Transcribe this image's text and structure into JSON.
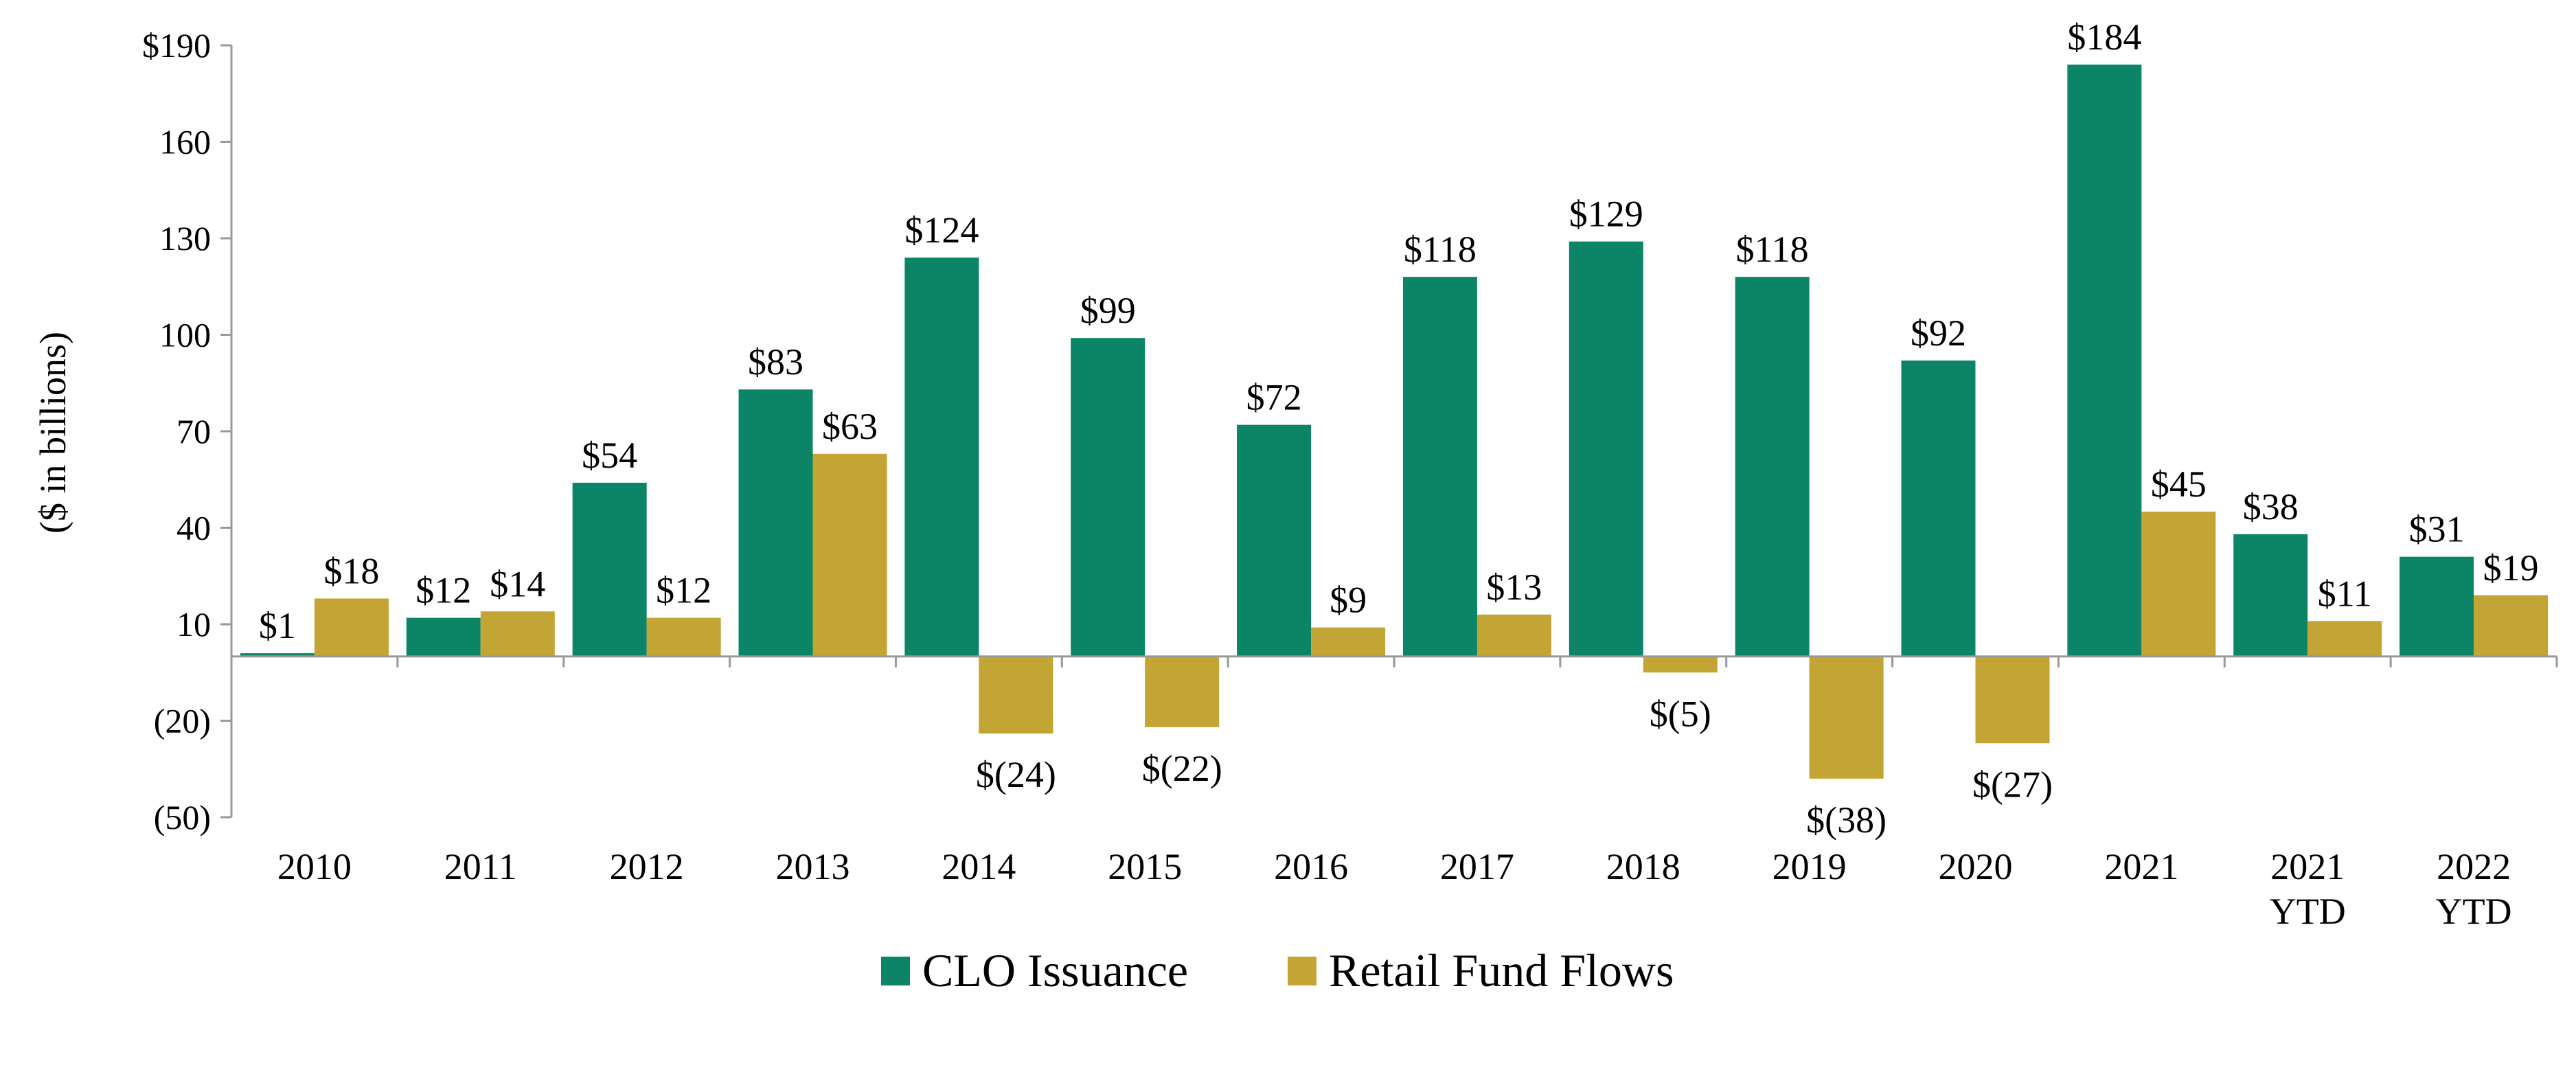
{
  "chart_data": {
    "type": "bar",
    "title": "",
    "ylabel": "($ in billions)",
    "xlabel": "",
    "ylim": [
      -50,
      190
    ],
    "yticks": [
      -50,
      -20,
      10,
      40,
      70,
      100,
      130,
      160,
      190
    ],
    "ytick_labels": [
      "(50)",
      "(20)",
      "10",
      "40",
      "70",
      "100",
      "130",
      "160",
      "$190"
    ],
    "categories": [
      [
        "2010"
      ],
      [
        "2011"
      ],
      [
        "2012"
      ],
      [
        "2013"
      ],
      [
        "2014"
      ],
      [
        "2015"
      ],
      [
        "2016"
      ],
      [
        "2017"
      ],
      [
        "2018"
      ],
      [
        "2019"
      ],
      [
        "2020"
      ],
      [
        "2021"
      ],
      [
        "2021",
        "YTD"
      ],
      [
        "2022",
        "YTD"
      ]
    ],
    "series": [
      {
        "name": "CLO Issuance",
        "color": "#0b8467",
        "values": [
          1,
          12,
          54,
          83,
          124,
          99,
          72,
          118,
          129,
          118,
          92,
          184,
          38,
          31
        ],
        "labels": [
          "$1",
          "$12",
          "$54",
          "$83",
          "$124",
          "$99",
          "$72",
          "$118",
          "$129",
          "$118",
          "$92",
          "$184",
          "$38",
          "$31"
        ]
      },
      {
        "name": "Retail Fund Flows",
        "color": "#c2a535",
        "values": [
          18,
          14,
          12,
          63,
          -24,
          -22,
          9,
          13,
          -5,
          -38,
          -27,
          45,
          11,
          19
        ],
        "labels": [
          "$18",
          "$14",
          "$12",
          "$63",
          "$(24)",
          "$(22)",
          "$9",
          "$13",
          "$(5)",
          "$(38)",
          "$(27)",
          "$45",
          "$11",
          "$19"
        ]
      }
    ],
    "grid": false,
    "legend_position": "bottom-center"
  }
}
